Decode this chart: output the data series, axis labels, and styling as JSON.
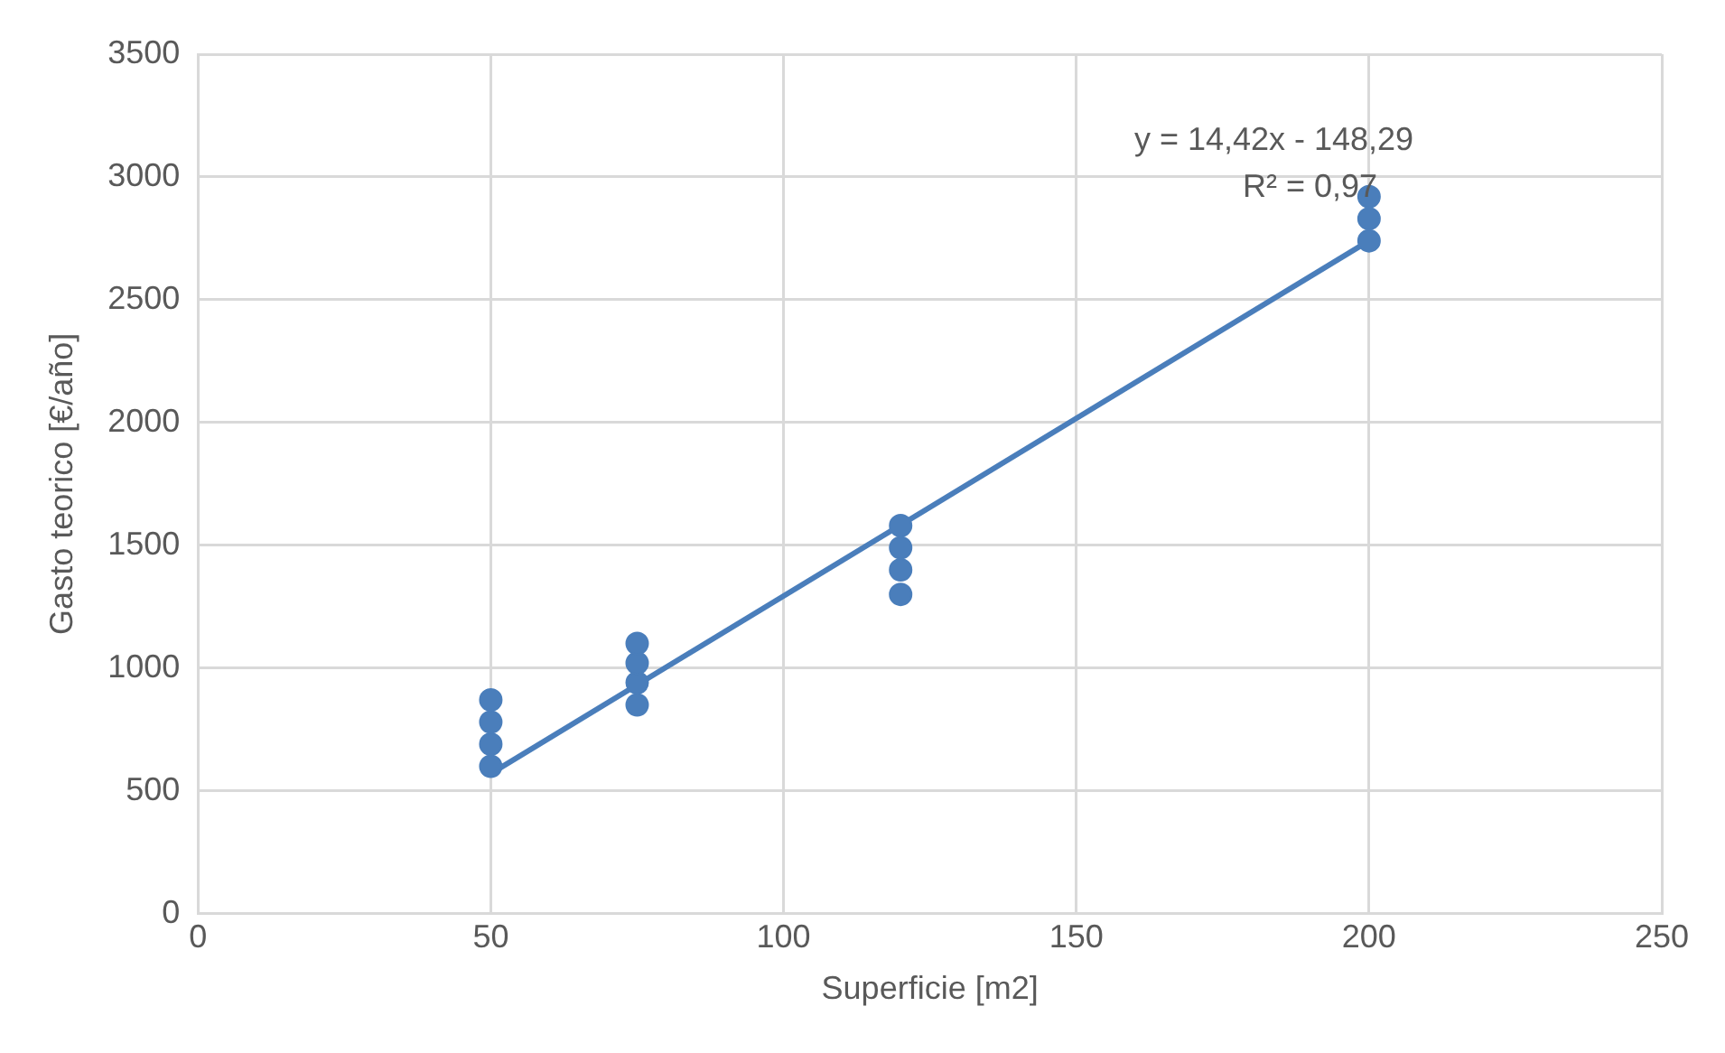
{
  "chart_data": {
    "type": "scatter",
    "xlabel": "Superficie [m2]",
    "ylabel": "Gasto teorico [€/año]",
    "xlim": [
      0,
      250
    ],
    "xticks": [
      0,
      50,
      100,
      150,
      200,
      250
    ],
    "ylim": [
      0,
      3500
    ],
    "yticks": [
      0,
      500,
      1000,
      1500,
      2000,
      2500,
      3000,
      3500
    ],
    "grid": true,
    "legend": false,
    "marker": "circle",
    "annotations": [
      "y = 14,42x - 148,29",
      "R² = 0,97"
    ],
    "series": [
      {
        "color": "#4a7ebb",
        "x": [
          50,
          50,
          50,
          50,
          75,
          75,
          75,
          75,
          120,
          120,
          120,
          120,
          200,
          200,
          200
        ],
        "values": [
          600,
          690,
          780,
          870,
          850,
          940,
          1020,
          1100,
          1300,
          1400,
          1490,
          1580,
          2740,
          2830,
          2920
        ]
      },
      {
        "type": "line",
        "marker": "none",
        "color": "#4a7ebb",
        "x": [
          50,
          200
        ],
        "values": [
          570,
          2740
        ]
      }
    ]
  }
}
